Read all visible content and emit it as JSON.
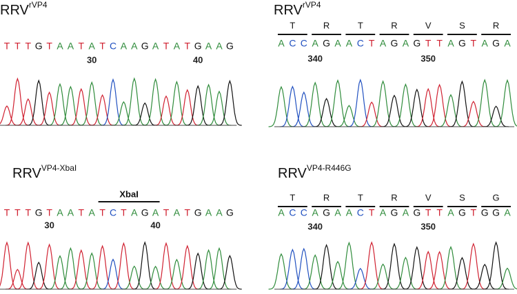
{
  "panels": [
    {
      "title": "RRV",
      "superscript": "rVP4",
      "bases": [
        "T",
        "T",
        "T",
        "G",
        "T",
        "A",
        "A",
        "T",
        "A",
        "T",
        "C",
        "A",
        "A",
        "G",
        "A",
        "T",
        "A",
        "T",
        "G",
        "A",
        "A",
        "G"
      ],
      "positions": [
        30,
        40
      ]
    },
    {
      "title": "RRV",
      "superscript": "rVP4",
      "amino_acids": [
        "T",
        "R",
        "T",
        "R",
        "V",
        "S",
        "R"
      ],
      "bases": [
        "A",
        "C",
        "C",
        "A",
        "G",
        "A",
        "A",
        "C",
        "T",
        "A",
        "G",
        "A",
        "G",
        "T",
        "T",
        "A",
        "G",
        "T",
        "A",
        "G",
        "A"
      ],
      "positions": [
        340,
        350
      ]
    },
    {
      "title": "RRV",
      "superscript": "VP4-XbaI",
      "site": "XbaI",
      "bases": [
        "T",
        "T",
        "T",
        "G",
        "T",
        "A",
        "A",
        "T",
        "A",
        "T",
        "C",
        "T",
        "A",
        "G",
        "A",
        "T",
        "A",
        "T",
        "G",
        "A",
        "A",
        "G"
      ],
      "positions": [
        30,
        40
      ]
    },
    {
      "title": "RRV",
      "superscript": "VP4-R446G",
      "amino_acids": [
        "T",
        "R",
        "T",
        "R",
        "V",
        "S",
        "G"
      ],
      "bases": [
        "A",
        "C",
        "C",
        "A",
        "G",
        "A",
        "A",
        "C",
        "T",
        "A",
        "G",
        "A",
        "G",
        "T",
        "T",
        "A",
        "G",
        "T",
        "G",
        "G",
        "A"
      ],
      "positions": [
        340,
        350
      ]
    }
  ]
}
